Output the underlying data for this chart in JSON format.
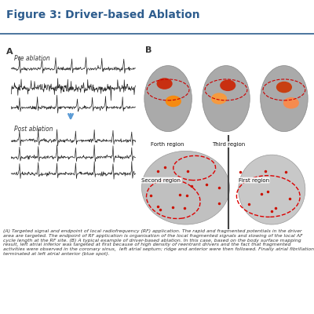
{
  "title": "Figure 3: Driver-based Ablation",
  "title_color": "#2e5d8e",
  "background_color": "#ffffff",
  "section_a_label": "A",
  "section_b_label": "B",
  "pre_ablation_label": "Pre ablation",
  "post_ablation_label": "Post ablation",
  "caption": "(A) Targeted signal and endpoint of local radiofrequency (RF) application. The rapid and fragmented potentials in the driver area are targeted. The endpoint of RF application is organisation of the local fragmented signals and slowing of the local AF cycle length at the RF site. (B) A typical example of driver-based ablation. In this case, based on the body surface mapping result, left atrial inferior was targeted at first because of high density of reentrant drivers and the fact that fragmented activities were observed in the coronary sinus,  left atrial septum; ridge and anterior were then followed. Finally atrial fibrillation terminated at left atrial anterior (blue spot).",
  "header_line_color": "#2e5d8e",
  "arrow_color": "#5b9bd5",
  "ecg_color": "#222222",
  "caption_color": "#333333"
}
